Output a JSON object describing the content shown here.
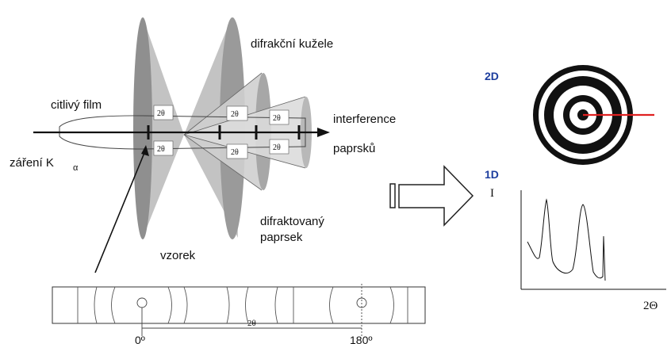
{
  "labels": {
    "cones": "difrakční kužele",
    "film": "citlivý film",
    "interference_1": "interference",
    "interference_2": "paprsků",
    "radiation": "záření K",
    "radiation_sub": "α",
    "sample": "vzorek",
    "diffracted_1": "difraktovaný",
    "diffracted_2": "paprsek",
    "two_theta": "2θ",
    "deg0": "0º",
    "deg180": "180º"
  },
  "cone_angles": [
    "2θ",
    "2θ",
    "2θ",
    "2θ",
    "2θ",
    "2θ"
  ],
  "right_panel": {
    "label_2d": "2D",
    "label_1d": "1D",
    "y_axis": "I",
    "x_axis": "2Θ"
  },
  "colors": {
    "accent_blue": "#1c3d9e",
    "red_line": "#e02020",
    "cone_dark": "#8c8c8c",
    "cone_mid": "#b4b4b4",
    "cone_light": "#d2d2d2"
  }
}
